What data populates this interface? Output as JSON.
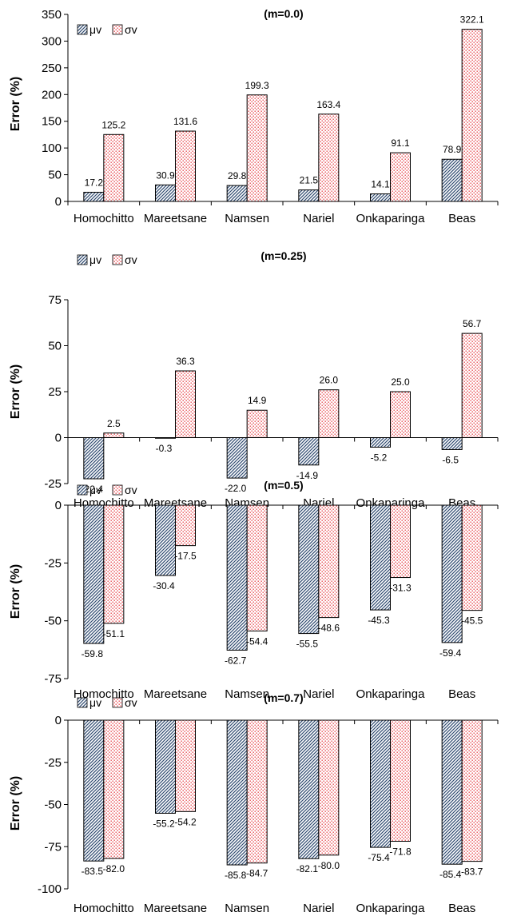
{
  "patterns": {
    "mu": {
      "stroke": "#2f4a70",
      "fill": "#ffffff"
    },
    "sigma": {
      "dot": "#e8494f",
      "fill": "#ffffff"
    }
  },
  "chart_data": [
    {
      "type": "bar",
      "title": "(m=0.0)",
      "ylabel": "Error (%)",
      "xlabel": "",
      "ylim": [
        0,
        350
      ],
      "yticks": [
        "0",
        "50",
        "100",
        "150",
        "200",
        "250",
        "300",
        "350"
      ],
      "legend": "top-left",
      "categories": [
        "Homochitto",
        "Mareetsane",
        "Namsen",
        "Nariel",
        "Onkaparinga",
        "Beas"
      ],
      "series": [
        {
          "name": "μv",
          "values": [
            17.2,
            30.9,
            29.8,
            21.5,
            14.1,
            78.9
          ],
          "labels": [
            "17.2",
            "30.9",
            "29.8",
            "21.5",
            "14.1",
            "78.9"
          ]
        },
        {
          "name": "σv",
          "values": [
            125.2,
            131.6,
            199.3,
            163.4,
            91.1,
            322.1
          ],
          "labels": [
            "125.2",
            "131.6",
            "199.3",
            "163.4",
            "91.1",
            "322.1"
          ]
        }
      ]
    },
    {
      "type": "bar",
      "title": "(m=0.25)",
      "ylabel": "Error (%)",
      "xlabel": "",
      "ylim": [
        -25,
        75
      ],
      "yticks": [
        "-25",
        "0",
        "25",
        "50",
        "75"
      ],
      "legend": "top-left",
      "categories": [
        "Homochitto",
        "Mareetsane",
        "Namsen",
        "Nariel",
        "Onkaparinga",
        "Beas"
      ],
      "series": [
        {
          "name": "μv",
          "values": [
            -22.4,
            -0.3,
            -22.0,
            -14.9,
            -5.2,
            -6.5
          ],
          "labels": [
            "-22.4",
            "-0.3",
            "-22.0",
            "-14.9",
            "-5.2",
            "-6.5"
          ]
        },
        {
          "name": "σv",
          "values": [
            2.5,
            36.3,
            14.9,
            26.0,
            25.0,
            56.7
          ],
          "labels": [
            "2.5",
            "36.3",
            "14.9",
            "26.0",
            "25.0",
            "56.7"
          ]
        }
      ]
    },
    {
      "type": "bar",
      "title": "(m=0.5)",
      "ylabel": "Error (%)",
      "xlabel": "",
      "ylim": [
        -75,
        0
      ],
      "yticks": [
        "-75",
        "-50",
        "-25",
        "0"
      ],
      "legend": "top-left",
      "categories": [
        "Homochitto",
        "Mareetsane",
        "Namsen",
        "Nariel",
        "Onkaparinga",
        "Beas"
      ],
      "series": [
        {
          "name": "μv",
          "values": [
            -59.8,
            -30.4,
            -62.7,
            -55.5,
            -45.3,
            -59.4
          ],
          "labels": [
            "-59.8",
            "-30.4",
            "-62.7",
            "-55.5",
            "-45.3",
            "-59.4"
          ]
        },
        {
          "name": "σv",
          "values": [
            -51.1,
            -17.5,
            -54.4,
            -48.6,
            -31.3,
            -45.5
          ],
          "labels": [
            "-51.1",
            "-17.5",
            "-54.4",
            "-48.6",
            "-31.3",
            "-45.5"
          ]
        }
      ]
    },
    {
      "type": "bar",
      "title": "(m=0.7)",
      "ylabel": "Error (%)",
      "xlabel": "",
      "ylim": [
        -100,
        0
      ],
      "yticks": [
        "-100",
        "-75",
        "-50",
        "-25",
        "0"
      ],
      "legend": "top-left",
      "categories": [
        "Homochitto",
        "Mareetsane",
        "Namsen",
        "Nariel",
        "Onkaparinga",
        "Beas"
      ],
      "series": [
        {
          "name": "μv",
          "values": [
            -83.5,
            -55.2,
            -85.8,
            -82.1,
            -75.4,
            -85.4
          ],
          "labels": [
            "-83.5",
            "-55.2",
            "-85.8",
            "-82.1",
            "-75.4",
            "-85.4"
          ]
        },
        {
          "name": "σv",
          "values": [
            -82.0,
            -54.2,
            -84.7,
            -80.0,
            -71.8,
            -83.7
          ],
          "labels": [
            "-82.0",
            "-54.2",
            "-84.7",
            "-80.0",
            "-71.8",
            "-83.7"
          ]
        }
      ]
    }
  ]
}
